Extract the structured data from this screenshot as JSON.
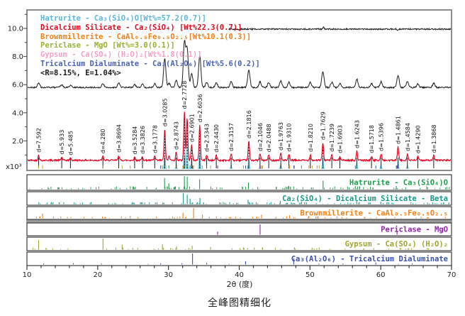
{
  "caption": "全峰图精细化",
  "chart_data": {
    "type": "line",
    "title": "全峰图精细化",
    "xlabel": "2θ (度)",
    "scale_label": "x10³",
    "xlim": [
      10,
      70
    ],
    "ylim": [
      0,
      11.3
    ],
    "x_major_ticks": [
      10,
      20,
      30,
      40,
      50,
      60,
      70
    ],
    "x_minor_step": 2,
    "y_major_ticks": [
      "2.0",
      "4.0",
      "6.0",
      "8.0",
      "10.0"
    ],
    "legend": [
      {
        "label": "Hatrurite - Ca₃(SiO₄)O[Wt%=57.2(0.7)]",
        "color": "#5db6da"
      },
      {
        "label": "Dicalcium Silicate - Ca₂(SiO₄) [Wt%22.3(0.7)]",
        "color": "#dd0a1e"
      },
      {
        "label": "Brownmillerite - CaAl₀.₅Fe₀.₅O₂.₅[Wt%10.1(0.3)]",
        "color": "#f08019"
      },
      {
        "label": "Periclase - MgO [Wt%=3.0(0.1)]",
        "color": "#96b332"
      },
      {
        "label": "Gypsum - Ca(SO₄) (H₂O)₂[Wt%1.8(0.1)]",
        "color": "#f3a0ca"
      },
      {
        "label": "Tricalcium Dialuminate - Ca₃(Al₂O₆) [Wt%5.6(0.2)]",
        "color": "#4a62b4"
      },
      {
        "label": "<R=8.15%, E=1.04%>",
        "color": "#1a1a1a"
      }
    ],
    "curves": {
      "observed": {
        "name": "observed",
        "color": "#1c1c1c",
        "baseline": 5.8
      },
      "calculated": {
        "name": "calculated",
        "color": "#e1001e",
        "baseline": 0.62
      },
      "difference": {
        "name": "difference",
        "color": "#1c1c1c",
        "level": 9.95,
        "x_start": 38.5
      },
      "contribution": {
        "name": "hatrurite-contribution",
        "color": "#8fd8ea"
      }
    },
    "peaks": [
      {
        "d": 7.592,
        "label": "d=7.592",
        "i": 0.35
      },
      {
        "d": 5.933,
        "label": "d=5.933",
        "i": 0.22
      },
      {
        "d": 5.485,
        "label": "d=5.485",
        "i": 0.15
      },
      {
        "d": 4.28,
        "label": "d=4.280",
        "i": 0.28
      },
      {
        "d": 3.8694,
        "label": "d=3.8694",
        "i": 0.35
      },
      {
        "d": 3.5284,
        "label": "d=3.5284",
        "i": 0.22
      },
      {
        "d": 3.3826,
        "label": "d=3.3826",
        "i": 0.25
      },
      {
        "d": 3.1778,
        "label": "d=3.1778",
        "i": 0.3
      },
      {
        "d": 3.0285,
        "label": "d=3.0285",
        "i": 2.2
      },
      {
        "d": 2.967,
        "label": "",
        "i": 0.3
      },
      {
        "d": 2.8743,
        "label": "d=2.8743",
        "i": 0.55
      },
      {
        "d": 2.7728,
        "label": "d=2.7728",
        "i": 3.45
      },
      {
        "d": 2.741,
        "label": "",
        "i": 3.0
      },
      {
        "d": 2.6901,
        "label": "d=2.6901",
        "i": 1.1
      },
      {
        "d": 2.6036,
        "label": "d=2.6036",
        "i": 2.5
      },
      {
        "d": 2.5343,
        "label": "d=2.5343",
        "i": 0.4
      },
      {
        "d": 2.443,
        "label": "d=2.4430",
        "i": 0.35
      },
      {
        "d": 2.3157,
        "label": "d=2.3157",
        "i": 0.45
      },
      {
        "d": 2.1816,
        "label": "d=2.1816",
        "i": 1.35
      },
      {
        "d": 2.1046,
        "label": "d=2.1046",
        "i": 0.45
      },
      {
        "d": 2.0488,
        "label": "d=2.0488",
        "i": 0.38
      },
      {
        "d": 1.9763,
        "label": "d=1.9763",
        "i": 0.5
      },
      {
        "d": 1.931,
        "label": "d=1.9310",
        "i": 0.42
      },
      {
        "d": 1.821,
        "label": "d=1.8210",
        "i": 0.4
      },
      {
        "d": 1.7629,
        "label": "d=1.7629",
        "i": 1.25
      },
      {
        "d": 1.7239,
        "label": "d=1.7239",
        "i": 0.4
      },
      {
        "d": 1.6903,
        "label": "d=1.6903",
        "i": 0.3
      },
      {
        "d": 1.6243,
        "label": "d=1.6243",
        "i": 0.65
      },
      {
        "d": 1.5718,
        "label": "d=1.5718",
        "i": 0.3
      },
      {
        "d": 1.5396,
        "label": "d=1.5396",
        "i": 0.45
      },
      {
        "d": 1.4861,
        "label": "d=1.4861",
        "i": 0.95
      },
      {
        "d": 1.4584,
        "label": "d=1.4584",
        "i": 0.45
      },
      {
        "d": 1.429,
        "label": "d=1.4290",
        "i": 0.28
      },
      {
        "d": 1.3868,
        "label": "d=1.3868",
        "i": 0.33
      }
    ],
    "phase_strips": [
      {
        "label": "Hatrurite - Ca₃(SiO₄)O",
        "color": "#1e9e4c",
        "ticks": [
          [
            29.45,
            0.85
          ],
          [
            30.05,
            0.45
          ],
          [
            32.25,
            1.0
          ],
          [
            32.65,
            0.95
          ],
          [
            34.4,
            0.75
          ],
          [
            41.3,
            0.5
          ],
          [
            47.0,
            0.25
          ],
          [
            51.85,
            0.65
          ],
          [
            56.4,
            0.25
          ],
          [
            62.2,
            0.25
          ]
        ],
        "minor_count": 110,
        "minor_max": 0.18
      },
      {
        "label": "Ca₂(SiO₄) - Dicalcium Silicate - Beta",
        "color": "#13988a",
        "ticks": [
          [
            32.1,
            1.0
          ],
          [
            32.65,
            0.85
          ],
          [
            33.05,
            0.5
          ],
          [
            34.45,
            0.55
          ],
          [
            41.25,
            0.4
          ],
          [
            45.8,
            0.3
          ],
          [
            48.8,
            0.25
          ],
          [
            56.6,
            0.28
          ],
          [
            60.0,
            0.22
          ]
        ],
        "minor_count": 130,
        "minor_max": 0.15
      },
      {
        "label": "Brownmillerite - CaAl₀.₅Fe₀.₅O₂.₅",
        "color": "#f08019",
        "ticks": [
          [
            12.2,
            0.45
          ],
          [
            24.6,
            0.25
          ],
          [
            32.05,
            0.55
          ],
          [
            33.55,
            1.0
          ],
          [
            34.8,
            0.35
          ],
          [
            43.15,
            0.35
          ],
          [
            47.1,
            0.3
          ],
          [
            49.85,
            0.25
          ],
          [
            51.0,
            0.2
          ]
        ],
        "minor_count": 80,
        "minor_max": 0.15
      },
      {
        "label": "Periclase - MgO",
        "color": "#8c23a5",
        "ticks": [
          [
            36.95,
            0.3
          ],
          [
            42.95,
            1.0
          ],
          [
            62.3,
            0.32
          ]
        ],
        "minor_count": 0,
        "minor_max": 0
      },
      {
        "label": "Gypsum - Ca(SO₄) (H₂O)₂",
        "color": "#a0a52f",
        "ticks": [
          [
            11.65,
            0.85
          ],
          [
            20.75,
            1.0
          ],
          [
            23.45,
            0.45
          ],
          [
            29.15,
            0.5
          ],
          [
            31.15,
            0.3
          ],
          [
            33.35,
            0.35
          ],
          [
            35.95,
            0.25
          ],
          [
            40.6,
            0.2
          ],
          [
            43.3,
            0.2
          ],
          [
            47.8,
            0.2
          ],
          [
            50.3,
            0.18
          ],
          [
            51.3,
            0.18
          ]
        ],
        "minor_count": 55,
        "minor_max": 0.14
      },
      {
        "label": "Ca₃(Al₂O₆) - Tricalcium Dialuminate",
        "color": "#3a50a8",
        "ticks": [
          [
            33.4,
            1.0
          ],
          [
            28.9,
            0.12
          ],
          [
            35.4,
            0.15
          ],
          [
            40.9,
            0.3
          ],
          [
            47.7,
            0.55
          ],
          [
            59.3,
            0.18
          ]
        ],
        "minor_count": 10,
        "minor_max": 0.1
      }
    ]
  }
}
